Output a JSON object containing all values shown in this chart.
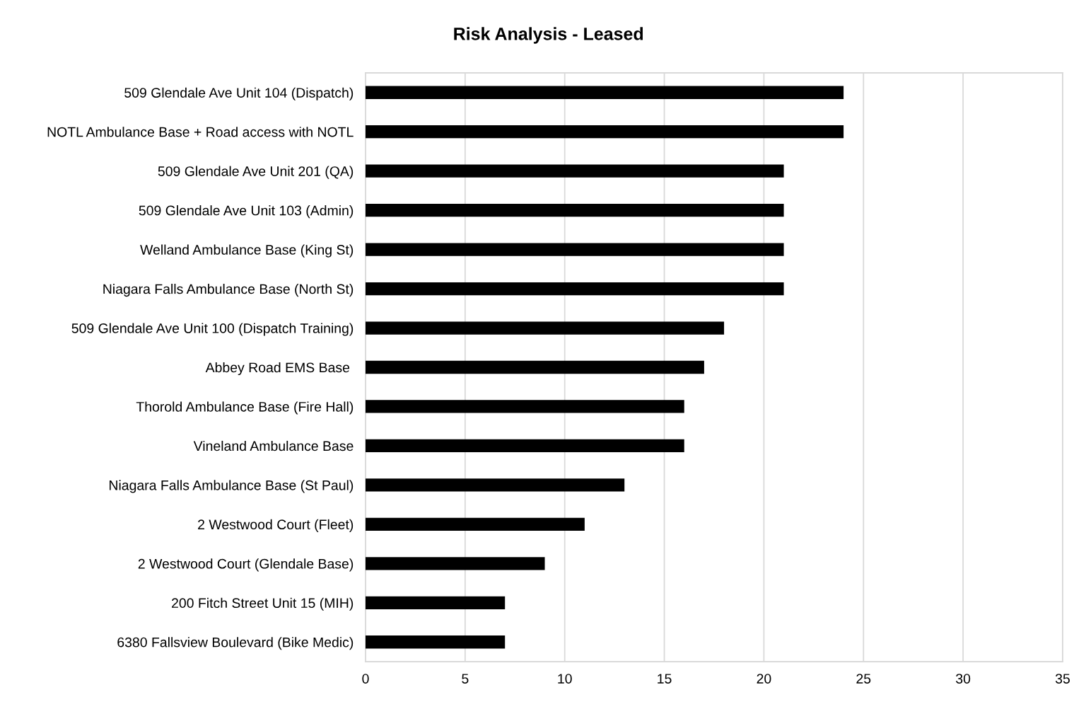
{
  "chart_data": {
    "type": "bar",
    "orientation": "horizontal",
    "title": "Risk Analysis - Leased",
    "categories": [
      "509 Glendale Ave Unit 104 (Dispatch)",
      "NOTL Ambulance Base + Road access with NOTL",
      "509 Glendale Ave Unit 201 (QA)",
      "509 Glendale Ave Unit 103 (Admin)",
      "Welland Ambulance Base (King St)",
      "Niagara Falls Ambulance Base (North St)",
      "509 Glendale Ave Unit 100 (Dispatch Training)",
      "Abbey Road EMS Base ",
      "Thorold Ambulance Base (Fire Hall)",
      "Vineland Ambulance Base",
      "Niagara Falls Ambulance Base (St Paul)",
      "2 Westwood Court (Fleet)",
      "2 Westwood Court (Glendale Base)",
      "200 Fitch Street Unit 15 (MIH)",
      "6380 Fallsview Boulevard (Bike Medic)"
    ],
    "values": [
      24,
      24,
      21,
      21,
      21,
      21,
      18,
      17,
      16,
      16,
      13,
      11,
      9,
      7,
      7
    ],
    "color": "#000000",
    "xlim": [
      0,
      35
    ],
    "xticks": [
      0,
      5,
      10,
      15,
      20,
      25,
      30,
      35
    ],
    "grid": "x"
  }
}
